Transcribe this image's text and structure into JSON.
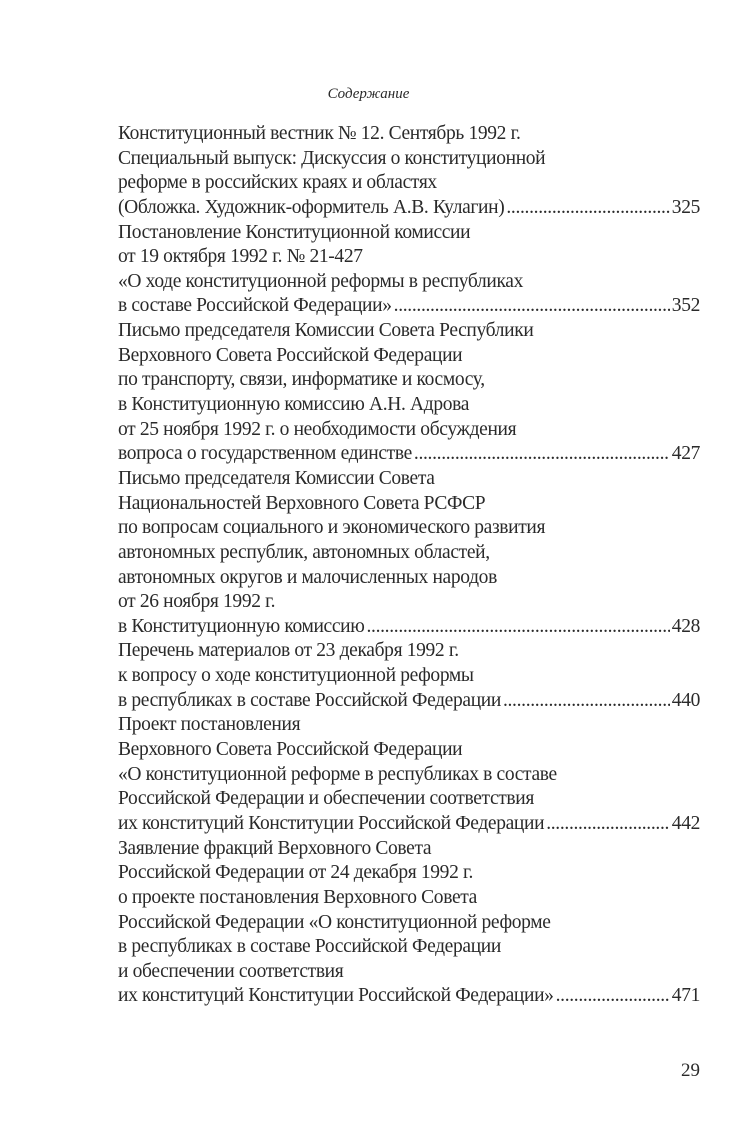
{
  "header": {
    "title": "Содержание"
  },
  "entries": [
    {
      "lines": [
        "Конституционный вестник № 12. Сентябрь 1992 г.",
        "Специальный выпуск: Дискуссия о конституционной",
        "реформе в российских краях и областях",
        "(Обложка. Художник-оформитель А.В. Кулагин)"
      ],
      "page": "325"
    },
    {
      "lines": [
        "Постановление Конституционной комиссии",
        "от 19 октября 1992 г. № 21-427",
        "«О ходе конституционной реформы в республиках",
        "в составе Российской Федерации»"
      ],
      "page": "352"
    },
    {
      "lines": [
        "Письмо председателя Комиссии Совета Республики",
        "Верховного Совета Российской Федерации",
        "по транспорту, связи, информатике и космосу,",
        "в Конституционную комиссию А.Н. Адрова",
        "от 25 ноября 1992 г. о необходимости обсуждения",
        "вопроса о государственном единстве"
      ],
      "page": "427"
    },
    {
      "lines": [
        "Письмо председателя Комиссии Совета",
        "Национальностей Верховного Совета РСФСР",
        "по вопросам социального и экономического развития",
        "автономных республик, автономных областей,",
        "автономных округов и малочисленных народов",
        "от 26 ноября 1992 г.",
        "в Конституционную комиссию"
      ],
      "page": "428"
    },
    {
      "lines": [
        "Перечень материалов от 23 декабря 1992 г.",
        "к вопросу о ходе конституционной реформы",
        "в республиках в составе Российской Федерации"
      ],
      "page": "440"
    },
    {
      "lines": [
        "Проект постановления",
        "Верховного Совета Российской Федерации",
        "«О конституционной реформе в республиках в составе",
        "Российской Федерации и обеспечении соответствия",
        "их конституций Конституции Российской Федерации"
      ],
      "page": "442"
    },
    {
      "lines": [
        "Заявление фракций Верховного Совета",
        "Российской Федерации от 24 декабря 1992 г.",
        "о проекте постановления Верховного Совета",
        "Российской Федерации «О конституционной реформе",
        "в республиках в составе Российской Федерации",
        "и обеспечении соответствия",
        "их конституций Конституции Российской Федерации»"
      ],
      "page": "471"
    }
  ],
  "footer": {
    "page_number": "29"
  }
}
